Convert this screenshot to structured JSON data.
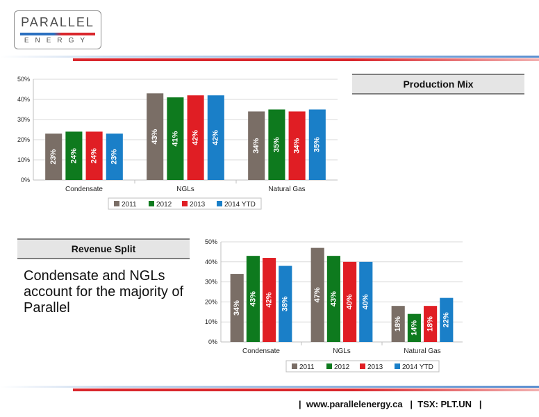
{
  "logo": {
    "name_top": "PARALLEL",
    "name_bottom": "ENERGY"
  },
  "footer": "|  www.parallelenergy.ca   |  TSX: PLT.UN   |",
  "body_text": "Condensate and NGLs account for the majority of Parallel",
  "colors": {
    "2011": "#7a6e66",
    "2012": "#0e7a1e",
    "2013": "#e01e24",
    "2014 YTD": "#1a7fc8"
  },
  "chart_data": [
    {
      "type": "bar",
      "title": "Production Mix",
      "categories": [
        "Condensate",
        "NGLs",
        "Natural Gas"
      ],
      "yticks": [
        "0%",
        "10%",
        "20%",
        "30%",
        "40%",
        "50%"
      ],
      "ylim": [
        0,
        50
      ],
      "legend_position": "bottom",
      "series": [
        {
          "name": "2011",
          "values": [
            23,
            43,
            34
          ],
          "labels": [
            "23%",
            "43%",
            "34%"
          ]
        },
        {
          "name": "2012",
          "values": [
            24,
            41,
            35
          ],
          "labels": [
            "24%",
            "41%",
            "35%"
          ]
        },
        {
          "name": "2013",
          "values": [
            24,
            42,
            34
          ],
          "labels": [
            "24%",
            "42%",
            "34%"
          ]
        },
        {
          "name": "2014 YTD",
          "values": [
            23,
            42,
            35
          ],
          "labels": [
            "23%",
            "42%",
            "35%"
          ]
        }
      ]
    },
    {
      "type": "bar",
      "title": "Revenue Split",
      "categories": [
        "Condensate",
        "NGLs",
        "Natural Gas"
      ],
      "yticks": [
        "0%",
        "10%",
        "20%",
        "30%",
        "40%",
        "50%"
      ],
      "ylim": [
        0,
        50
      ],
      "legend_position": "bottom",
      "series": [
        {
          "name": "2011",
          "values": [
            34,
            47,
            18
          ],
          "labels": [
            "34%",
            "47%",
            "18%"
          ]
        },
        {
          "name": "2012",
          "values": [
            43,
            43,
            14
          ],
          "labels": [
            "43%",
            "43%",
            "14%"
          ]
        },
        {
          "name": "2013",
          "values": [
            42,
            40,
            18
          ],
          "labels": [
            "42%",
            "40%",
            "18%"
          ]
        },
        {
          "name": "2014 YTD",
          "values": [
            38,
            40,
            22
          ],
          "labels": [
            "38%",
            "40%",
            "22%"
          ]
        }
      ]
    }
  ]
}
